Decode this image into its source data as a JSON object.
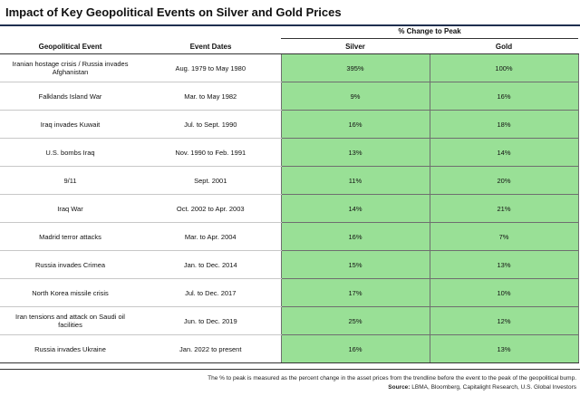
{
  "title": "Impact of Key Geopolitical Events on Silver and Gold Prices",
  "group_header": "% Change to Peak",
  "columns": [
    "Geopolitical Event",
    "Event Dates",
    "Silver",
    "Gold"
  ],
  "rows": [
    {
      "event": "Iranian hostage crisis / Russia invades Afghanistan",
      "dates": "Aug. 1979 to May 1980",
      "silver": "395%",
      "gold": "100%"
    },
    {
      "event": "Falklands Island War",
      "dates": "Mar. to May 1982",
      "silver": "9%",
      "gold": "16%"
    },
    {
      "event": "Iraq invades Kuwait",
      "dates": "Jul. to Sept. 1990",
      "silver": "16%",
      "gold": "18%"
    },
    {
      "event": "U.S. bombs Iraq",
      "dates": "Nov. 1990 to Feb. 1991",
      "silver": "13%",
      "gold": "14%"
    },
    {
      "event": "9/11",
      "dates": "Sept. 2001",
      "silver": "11%",
      "gold": "20%"
    },
    {
      "event": "Iraq War",
      "dates": "Oct. 2002 to Apr. 2003",
      "silver": "14%",
      "gold": "21%"
    },
    {
      "event": "Madrid terror attacks",
      "dates": "Mar. to Apr. 2004",
      "silver": "16%",
      "gold": "7%"
    },
    {
      "event": "Russia invades Crimea",
      "dates": "Jan. to Dec. 2014",
      "silver": "15%",
      "gold": "13%"
    },
    {
      "event": "North Korea missile crisis",
      "dates": "Jul. to Dec. 2017",
      "silver": "17%",
      "gold": "10%"
    },
    {
      "event": "Iran tensions and attack on Saudi oil facilities",
      "dates": "Jun. to Dec. 2019",
      "silver": "25%",
      "gold": "12%"
    },
    {
      "event": "Russia invades Ukraine",
      "dates": "Jan. 2022 to present",
      "silver": "16%",
      "gold": "13%"
    }
  ],
  "footnote": "The % to peak is measured as the percent change in the asset prices from the trendline before the event to the peak of the geopolitical bump.",
  "source_label": "Source:",
  "source_text": " LBMA, Bloomberg, Capitalight Research, U.S. Global Investors",
  "colors": {
    "value_cell": "#99e096",
    "title_rule": "#1f2f4f"
  }
}
